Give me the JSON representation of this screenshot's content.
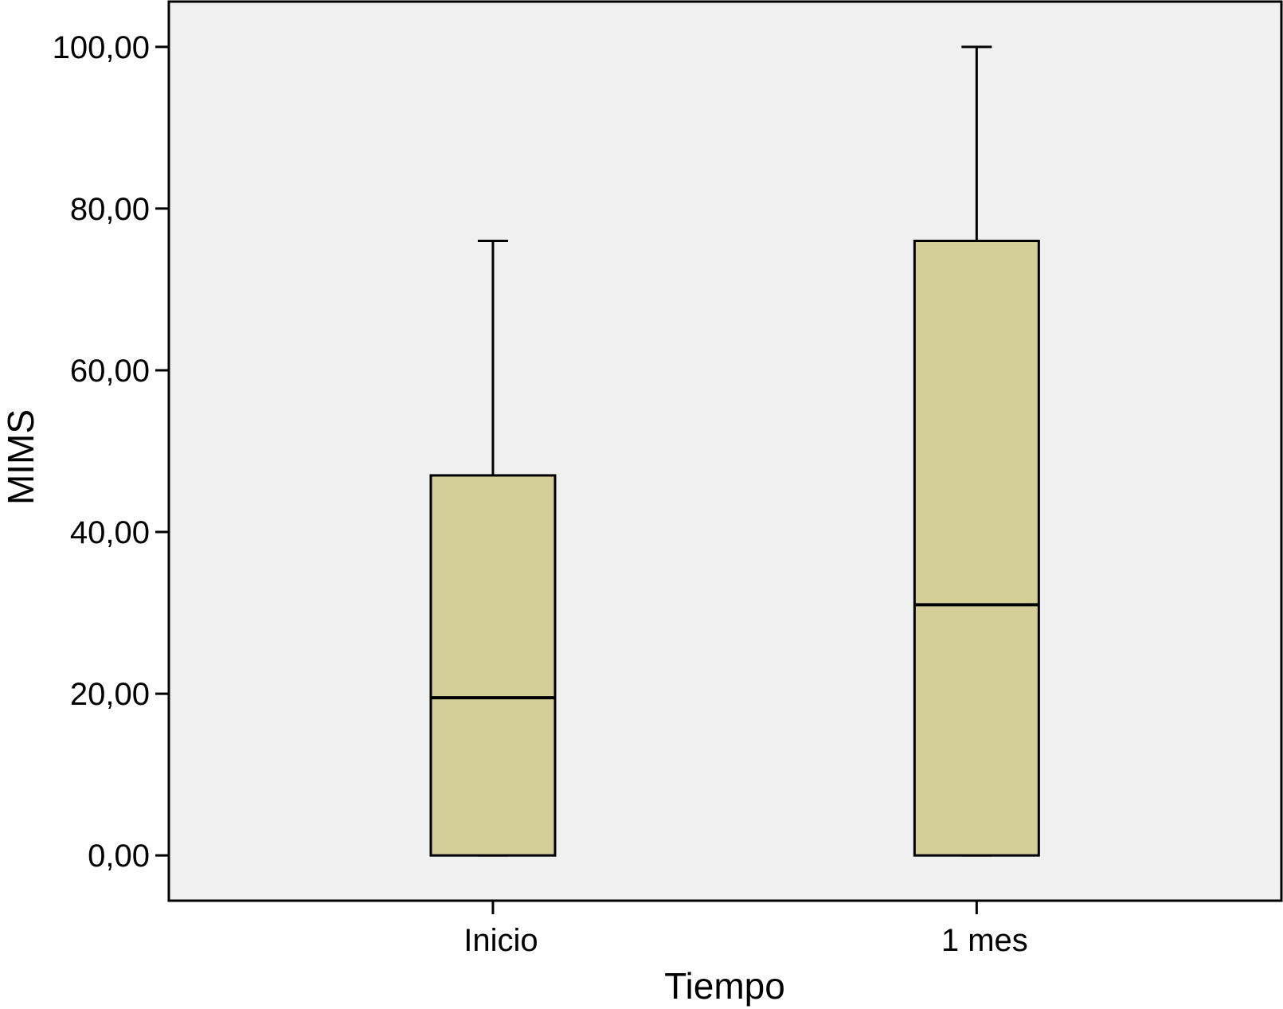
{
  "chart_data": {
    "type": "boxplot",
    "title": "",
    "xlabel": "Tiempo",
    "ylabel": "MIMS",
    "ylim": [
      -5.6,
      105.6
    ],
    "yticks": [
      0,
      20,
      40,
      60,
      80,
      100
    ],
    "ytick_labels": [
      "0,00",
      "20,00",
      "40,00",
      "60,00",
      "80,00",
      "100,00"
    ],
    "categories": [
      "Inicio",
      "1 mes"
    ],
    "boxes": [
      {
        "category": "Inicio",
        "min": 0,
        "q1": 0,
        "median": 19.5,
        "q3": 47,
        "max": 76
      },
      {
        "category": "1 mes",
        "min": 0,
        "q1": 0,
        "median": 31,
        "q3": 76,
        "max": 100
      }
    ],
    "grid": false,
    "colors": {
      "box_fill": "#d4cf98",
      "plot_background": "#f0f0f0",
      "line": "#000000"
    }
  }
}
